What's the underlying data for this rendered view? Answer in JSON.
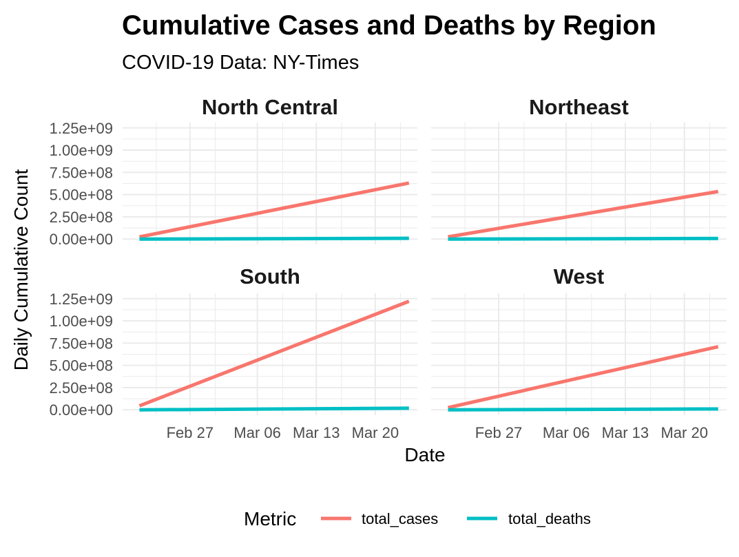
{
  "chart_data": {
    "type": "line",
    "title": "Cumulative Cases and Deaths by Region",
    "subtitle": "COVID-19 Data: NY-Times",
    "xlabel": "Date",
    "ylabel": "Daily Cumulative Count",
    "legend": {
      "title": "Metric",
      "position": "bottom",
      "entries": [
        "total_cases",
        "total_deaths"
      ]
    },
    "colors": {
      "total_cases": "#F8766D",
      "total_deaths": "#00BFC4"
    },
    "x_ticks": [
      "Feb 27",
      "Mar 06",
      "Mar 13",
      "Mar 20"
    ],
    "x_tick_dates": [
      "2020-02-27",
      "2020-03-06",
      "2020-03-13",
      "2020-03-20"
    ],
    "x_range": [
      "2020-02-19",
      "2020-03-25"
    ],
    "y_ticks": [
      "0.00e+00",
      "2.50e+08",
      "5.00e+08",
      "7.50e+08",
      "1.00e+09",
      "1.25e+09"
    ],
    "y_tick_values": [
      0,
      250000000,
      500000000,
      750000000,
      1000000000,
      1250000000
    ],
    "ylim": [
      -60000000,
      1310000000
    ],
    "grid": true,
    "facets": [
      {
        "name": "North Central",
        "series": [
          {
            "name": "total_cases",
            "x": [
              "2020-02-21",
              "2020-03-24"
            ],
            "y": [
              25000000,
              630000000
            ]
          },
          {
            "name": "total_deaths",
            "x": [
              "2020-02-21",
              "2020-03-24"
            ],
            "y": [
              0,
              9000000
            ]
          }
        ]
      },
      {
        "name": "Northeast",
        "series": [
          {
            "name": "total_cases",
            "x": [
              "2020-02-21",
              "2020-03-24"
            ],
            "y": [
              25000000,
              535000000
            ]
          },
          {
            "name": "total_deaths",
            "x": [
              "2020-02-21",
              "2020-03-24"
            ],
            "y": [
              0,
              7000000
            ]
          }
        ]
      },
      {
        "name": "South",
        "series": [
          {
            "name": "total_cases",
            "x": [
              "2020-02-21",
              "2020-03-24"
            ],
            "y": [
              45000000,
              1220000000
            ]
          },
          {
            "name": "total_deaths",
            "x": [
              "2020-02-21",
              "2020-03-24"
            ],
            "y": [
              0,
              18000000
            ]
          }
        ]
      },
      {
        "name": "West",
        "series": [
          {
            "name": "total_cases",
            "x": [
              "2020-02-21",
              "2020-03-24"
            ],
            "y": [
              25000000,
              710000000
            ]
          },
          {
            "name": "total_deaths",
            "x": [
              "2020-02-21",
              "2020-03-24"
            ],
            "y": [
              0,
              10000000
            ]
          }
        ]
      }
    ]
  }
}
